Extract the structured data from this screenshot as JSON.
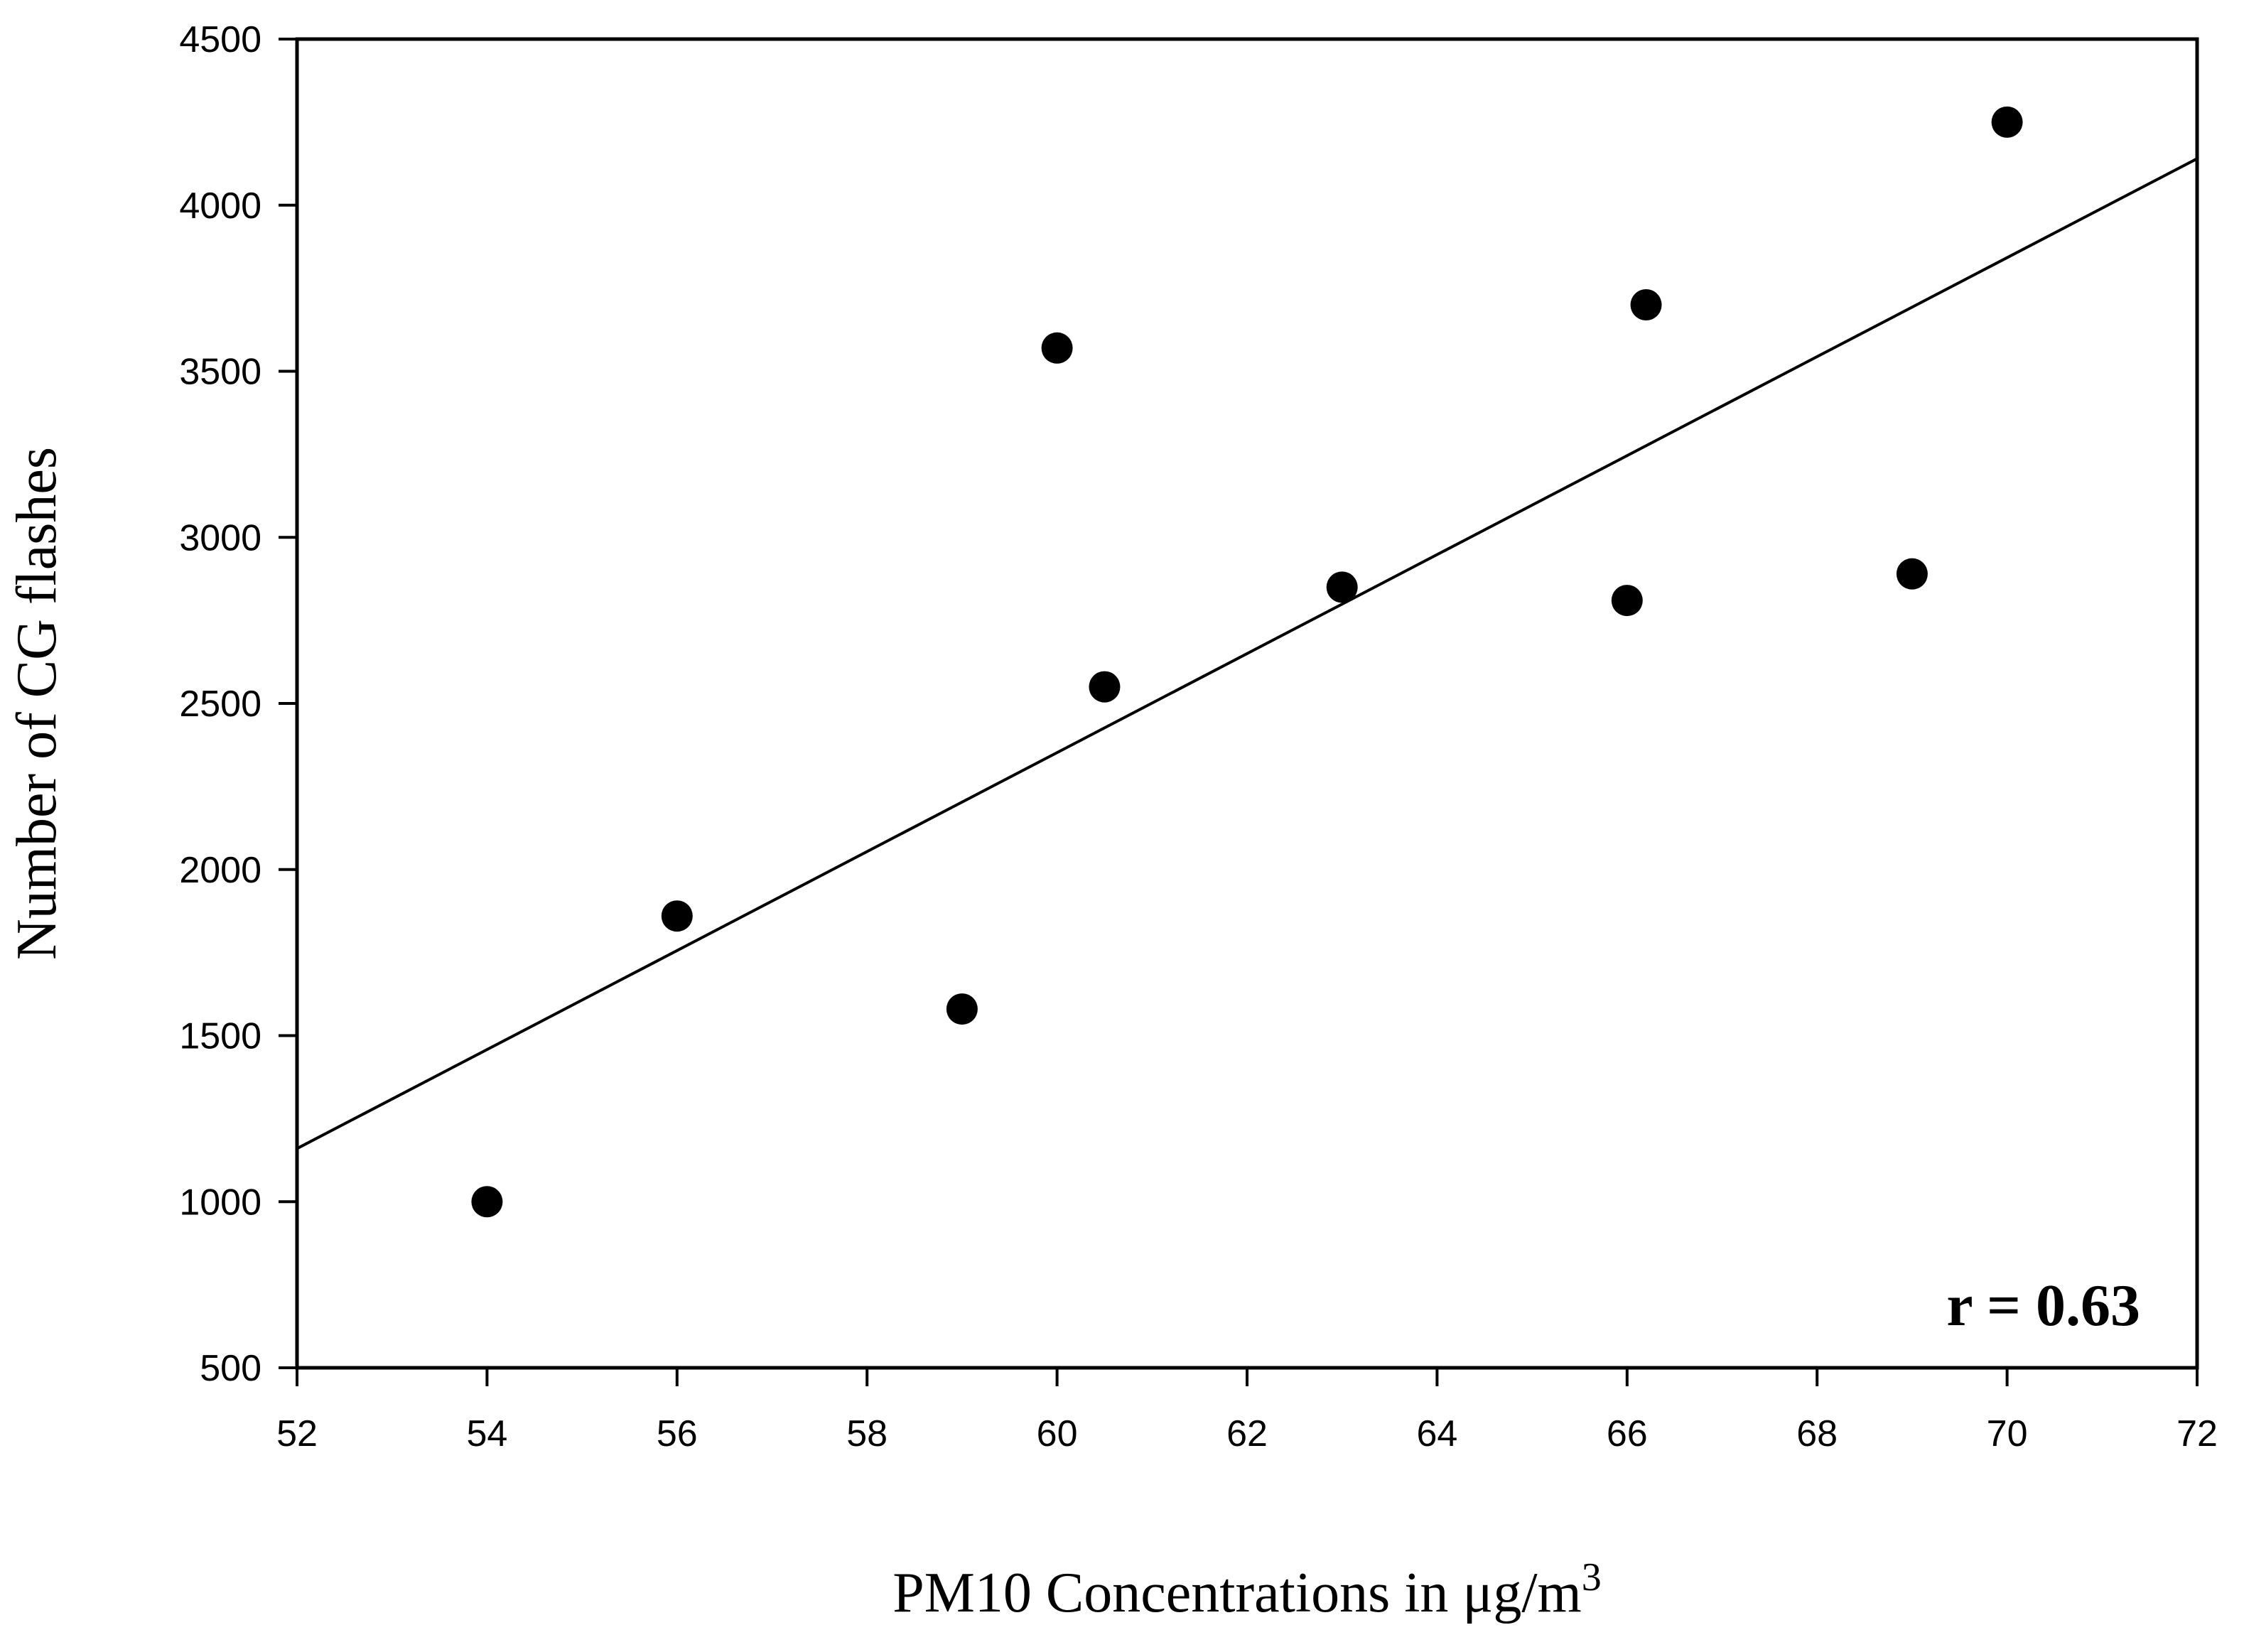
{
  "chart_data": {
    "type": "scatter",
    "title": "",
    "xlabel": "PM10 Concentrations in μg/m",
    "xlabel_superscript": "3",
    "ylabel": "Number of CG flashes",
    "xlim": [
      52,
      72
    ],
    "ylim": [
      500,
      4500
    ],
    "xticks": [
      52,
      54,
      56,
      58,
      60,
      62,
      64,
      66,
      68,
      70,
      72
    ],
    "yticks": [
      500,
      1000,
      1500,
      2000,
      2500,
      3000,
      3500,
      4000,
      4500
    ],
    "grid": false,
    "legend": "none",
    "points": [
      {
        "x": 54,
        "y": 1000
      },
      {
        "x": 56,
        "y": 1860
      },
      {
        "x": 59,
        "y": 1580
      },
      {
        "x": 60,
        "y": 3570
      },
      {
        "x": 60.5,
        "y": 2550
      },
      {
        "x": 63,
        "y": 2850
      },
      {
        "x": 66,
        "y": 2810
      },
      {
        "x": 66.2,
        "y": 3700
      },
      {
        "x": 69,
        "y": 2890
      },
      {
        "x": 70,
        "y": 4250
      }
    ],
    "trendline": {
      "x": [
        52,
        72
      ],
      "y": [
        1160,
        4140
      ]
    },
    "annotation": "r = 0.63",
    "colors": {
      "marker": "#000000",
      "line": "#000000",
      "background": "#ffffff"
    }
  }
}
